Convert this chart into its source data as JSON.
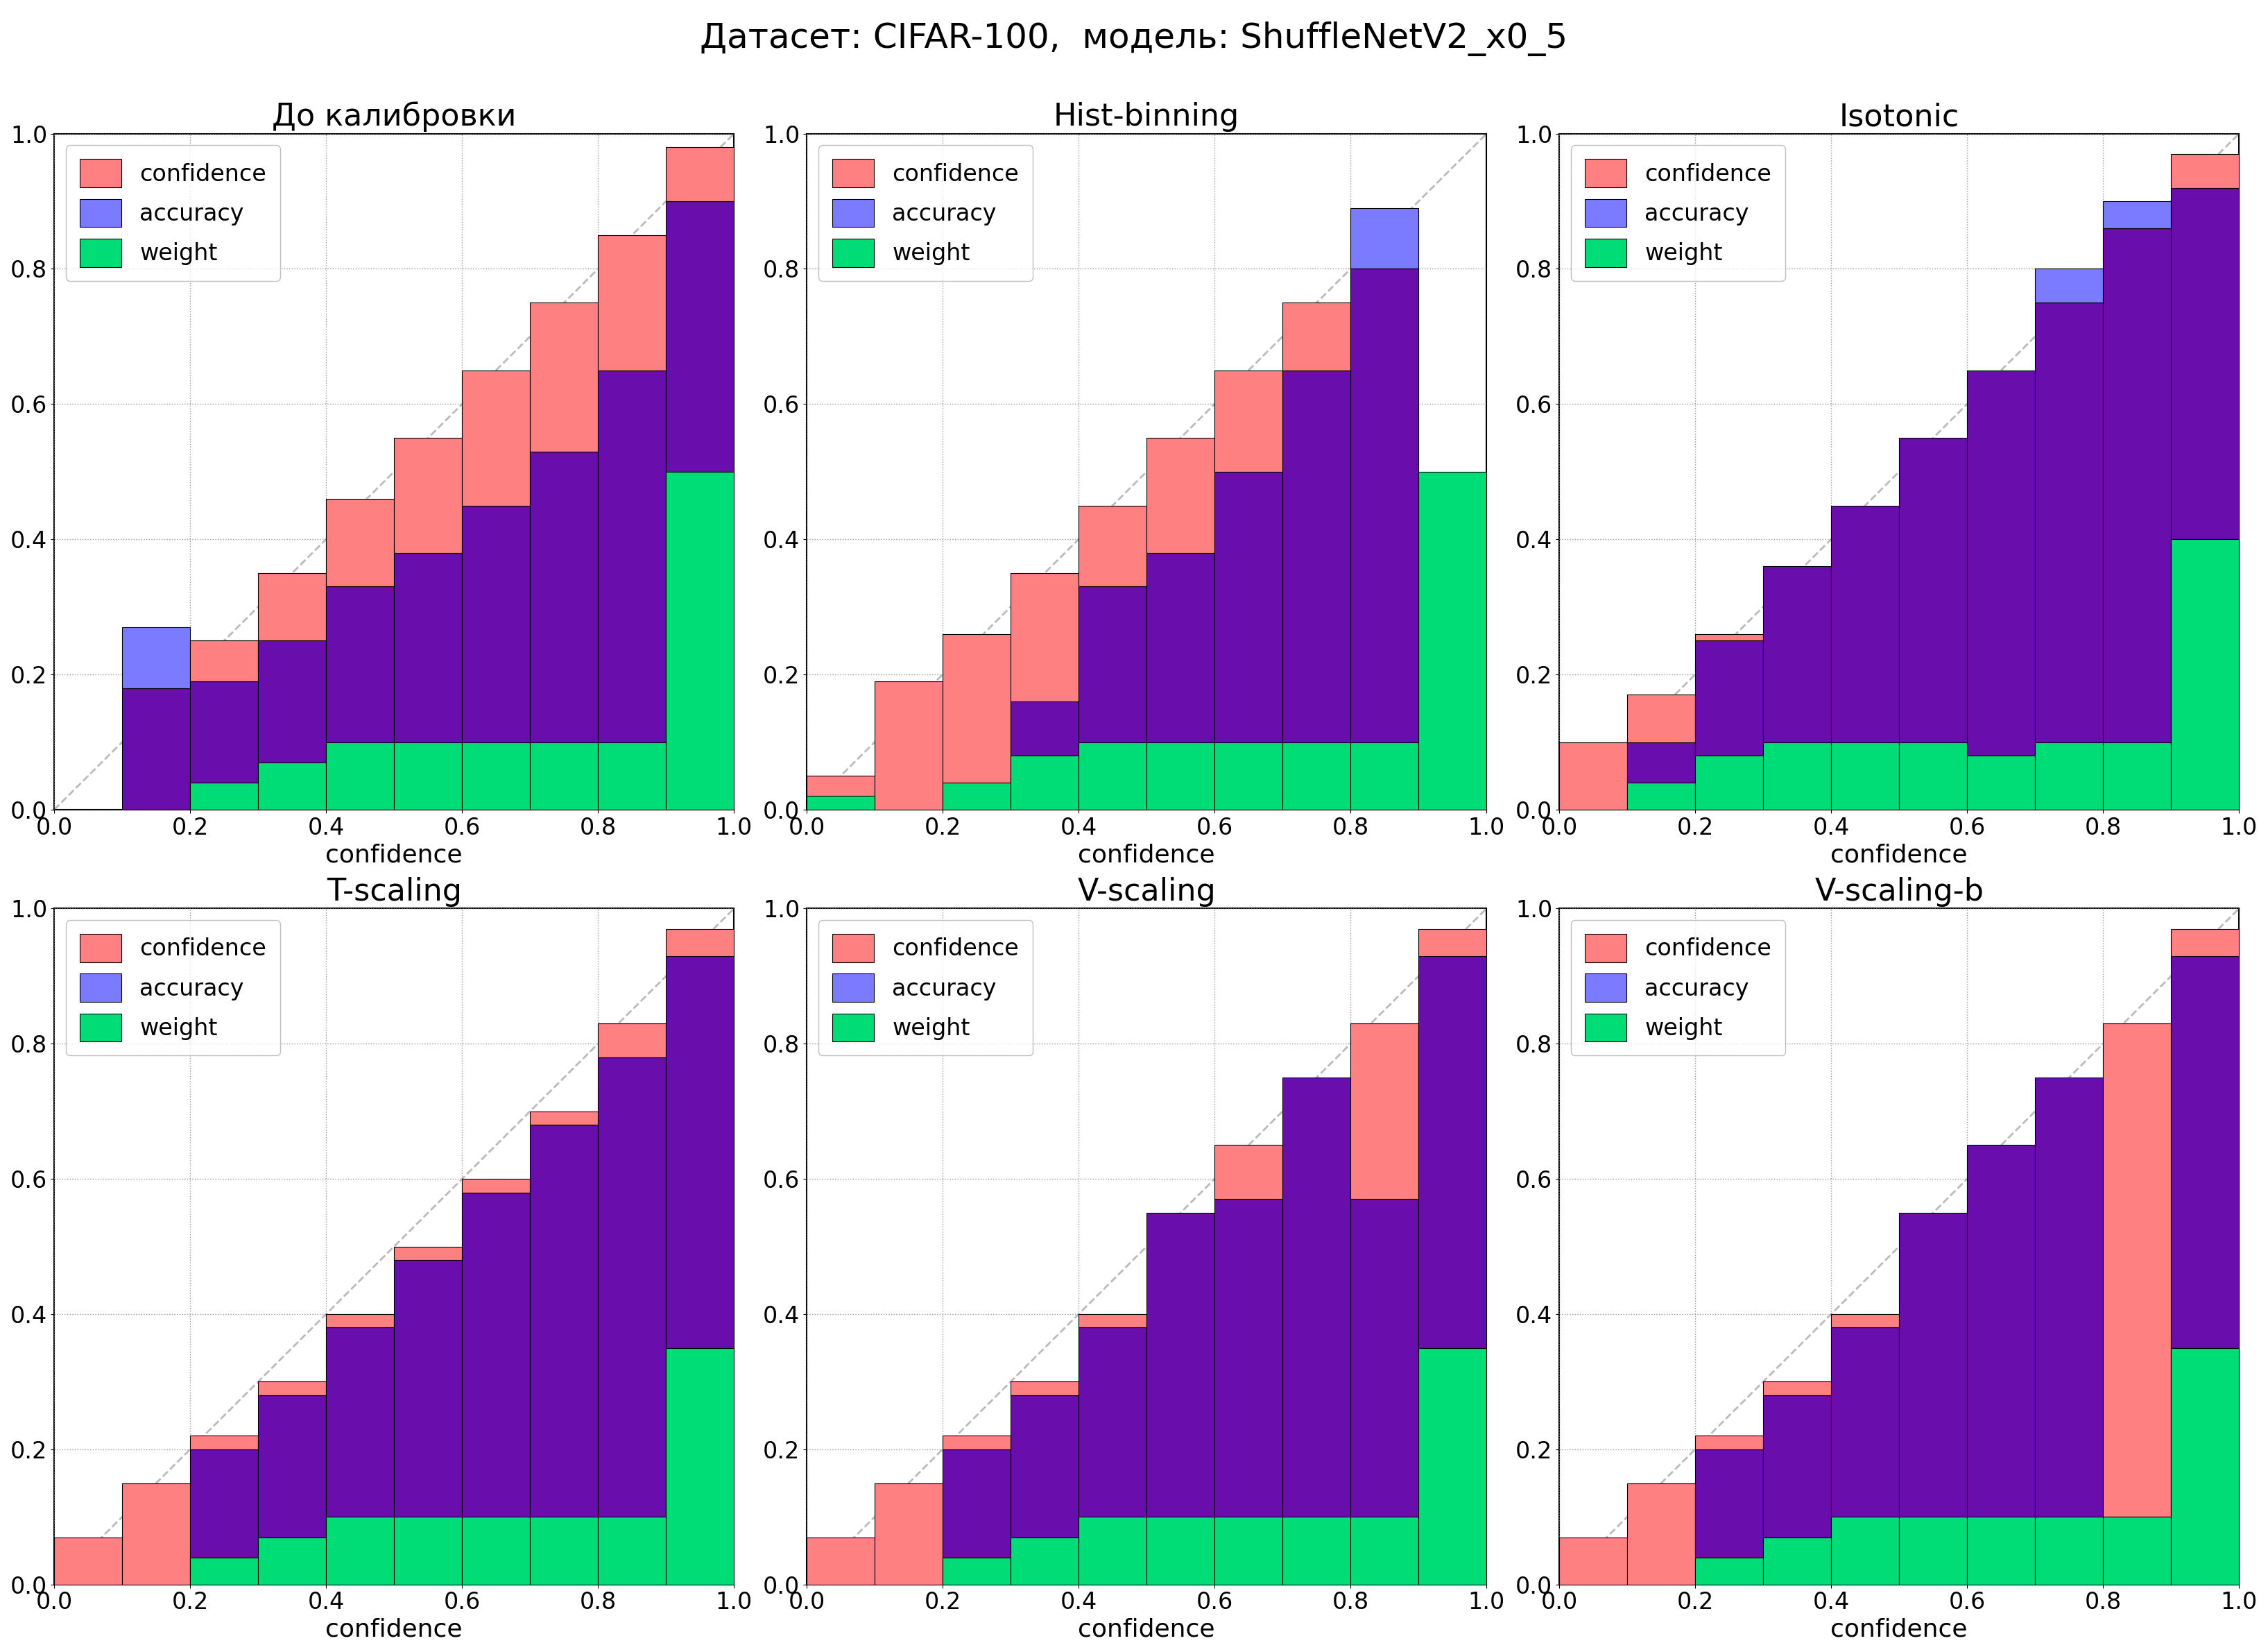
{
  "suptitle": "Датасет: CIFAR-100,  модель: ShuffleNetV2_x0_5",
  "color_confidence": "#FF8080",
  "color_accuracy": "#7B7BFF",
  "color_weight": "#00DD77",
  "color_purple": "#6A0DAD",
  "color_diag": "#BBBBBB",
  "xlabel": "confidence",
  "subplots": [
    {
      "title": "До калибровки",
      "acc": [
        0.0,
        0.27,
        0.19,
        0.25,
        0.33,
        0.38,
        0.45,
        0.53,
        0.65,
        0.9
      ],
      "conf": [
        0.0,
        0.18,
        0.25,
        0.35,
        0.46,
        0.55,
        0.65,
        0.75,
        0.85,
        0.98
      ],
      "wt": [
        0.0,
        0.0,
        0.04,
        0.07,
        0.1,
        0.1,
        0.1,
        0.1,
        0.1,
        0.5
      ]
    },
    {
      "title": "Hist-binning",
      "acc": [
        0.0,
        0.0,
        0.0,
        0.16,
        0.33,
        0.38,
        0.5,
        0.65,
        0.89,
        0.0
      ],
      "conf": [
        0.05,
        0.19,
        0.26,
        0.35,
        0.45,
        0.55,
        0.65,
        0.75,
        0.8,
        0.0
      ],
      "wt": [
        0.02,
        0.0,
        0.04,
        0.08,
        0.1,
        0.1,
        0.1,
        0.1,
        0.1,
        0.5
      ]
    },
    {
      "title": "Isotonic",
      "acc": [
        0.0,
        0.1,
        0.25,
        0.36,
        0.45,
        0.55,
        0.65,
        0.8,
        0.9,
        0.92
      ],
      "conf": [
        0.1,
        0.17,
        0.26,
        0.36,
        0.45,
        0.55,
        0.65,
        0.75,
        0.86,
        0.97
      ],
      "wt": [
        0.0,
        0.04,
        0.08,
        0.1,
        0.1,
        0.1,
        0.08,
        0.1,
        0.1,
        0.4
      ]
    },
    {
      "title": "T-scaling",
      "acc": [
        0.0,
        0.0,
        0.2,
        0.28,
        0.38,
        0.48,
        0.58,
        0.68,
        0.78,
        0.93
      ],
      "conf": [
        0.07,
        0.15,
        0.22,
        0.3,
        0.4,
        0.5,
        0.6,
        0.7,
        0.83,
        0.97
      ],
      "wt": [
        0.0,
        0.0,
        0.04,
        0.07,
        0.1,
        0.1,
        0.1,
        0.1,
        0.1,
        0.35
      ]
    },
    {
      "title": "V-scaling",
      "acc": [
        0.0,
        0.0,
        0.2,
        0.28,
        0.38,
        0.55,
        0.57,
        0.75,
        0.57,
        0.93
      ],
      "conf": [
        0.07,
        0.15,
        0.22,
        0.3,
        0.4,
        0.55,
        0.65,
        0.75,
        0.83,
        0.97
      ],
      "wt": [
        0.0,
        0.0,
        0.04,
        0.07,
        0.1,
        0.1,
        0.1,
        0.1,
        0.1,
        0.35
      ]
    },
    {
      "title": "V-scaling-b",
      "acc": [
        0.0,
        0.0,
        0.2,
        0.28,
        0.38,
        0.55,
        0.65,
        0.75,
        0.1,
        0.93
      ],
      "conf": [
        0.07,
        0.15,
        0.22,
        0.3,
        0.4,
        0.55,
        0.65,
        0.75,
        0.83,
        0.97
      ],
      "wt": [
        0.0,
        0.0,
        0.04,
        0.07,
        0.1,
        0.1,
        0.1,
        0.1,
        0.1,
        0.35
      ]
    }
  ]
}
